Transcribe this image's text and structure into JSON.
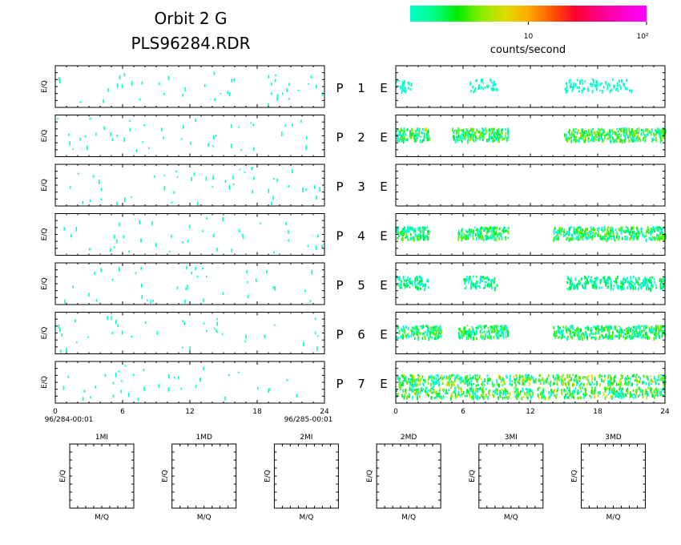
{
  "header": {
    "title_line1": "Orbit 2 G",
    "title_line2": "PLS96284.RDR"
  },
  "colorbar": {
    "colors": [
      "#00ffcc",
      "#00ff88",
      "#00ee00",
      "#88ee00",
      "#dddd00",
      "#ffaa00",
      "#ff5500",
      "#ff0033",
      "#ff0088",
      "#ff00cc",
      "#ff00ff"
    ],
    "tick_labels": [
      {
        "label": "10",
        "value": 10
      },
      {
        "label": "10²",
        "value": 100
      }
    ],
    "range": [
      1,
      100
    ],
    "scale": "log",
    "label": "counts/second"
  },
  "chart_data": {
    "type": "heatmap",
    "x_ticks": [
      "0",
      "6",
      "12",
      "18",
      "24"
    ],
    "xlim": [
      0,
      24
    ],
    "x_start_label": "96/284-00:01",
    "x_end_label": "96/285-00:01",
    "ylabel": "E/Q",
    "grid": false,
    "rows": [
      {
        "p_label": "P",
        "index_label": "1",
        "e_label": "E",
        "left_level": 0.25,
        "right_level": 0.35,
        "right_clusters": [
          [
            0.0,
            1.5
          ],
          [
            6.5,
            9.0
          ],
          [
            15.0,
            21.0
          ]
        ]
      },
      {
        "p_label": "P",
        "index_label": "2",
        "e_label": "E",
        "left_level": 0.25,
        "right_level": 0.9,
        "right_clusters": [
          [
            0.0,
            3.0
          ],
          [
            5.0,
            10.0
          ],
          [
            15.0,
            24.0
          ]
        ]
      },
      {
        "p_label": "P",
        "index_label": "3",
        "e_label": "E",
        "left_level": 0.3,
        "right_level": 0.0,
        "right_clusters": []
      },
      {
        "p_label": "P",
        "index_label": "4",
        "e_label": "E",
        "left_level": 0.2,
        "right_level": 0.85,
        "right_clusters": [
          [
            0.0,
            3.0
          ],
          [
            5.5,
            10.0
          ],
          [
            14.0,
            24.0
          ]
        ]
      },
      {
        "p_label": "P",
        "index_label": "5",
        "e_label": "E",
        "left_level": 0.2,
        "right_level": 0.6,
        "right_clusters": [
          [
            0.0,
            3.0
          ],
          [
            6.0,
            9.0
          ],
          [
            15.0,
            24.0
          ]
        ]
      },
      {
        "p_label": "P",
        "index_label": "6",
        "e_label": "E",
        "left_level": 0.2,
        "right_level": 0.85,
        "right_clusters": [
          [
            0.0,
            4.0
          ],
          [
            5.5,
            10.0
          ],
          [
            14.0,
            24.0
          ]
        ]
      },
      {
        "p_label": "P",
        "index_label": "7",
        "e_label": "E",
        "left_level": 0.2,
        "right_level": 1.0,
        "right_clusters": [
          [
            0.0,
            24.0
          ]
        ]
      }
    ],
    "bottom_panels": [
      {
        "title": "1MI",
        "xlabel": "M/Q",
        "ylabel": "E/Q"
      },
      {
        "title": "1MD",
        "xlabel": "M/Q",
        "ylabel": "E/Q"
      },
      {
        "title": "2MI",
        "xlabel": "M/Q",
        "ylabel": "E/Q"
      },
      {
        "title": "2MD",
        "xlabel": "M/Q",
        "ylabel": "E/Q"
      },
      {
        "title": "3MI",
        "xlabel": "M/Q",
        "ylabel": "E/Q"
      },
      {
        "title": "3MD",
        "xlabel": "M/Q",
        "ylabel": "E/Q"
      }
    ]
  }
}
